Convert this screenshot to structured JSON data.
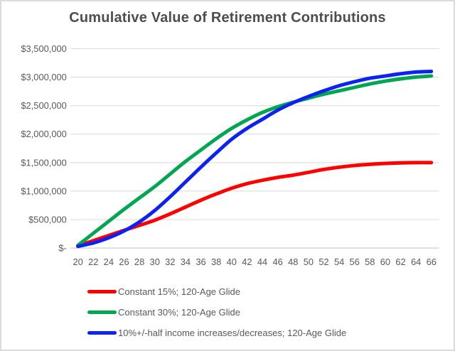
{
  "chart_data": {
    "type": "line",
    "title": "Cumulative Value of Retirement Contributions",
    "xlabel": "",
    "ylabel": "",
    "categories": [
      20,
      22,
      24,
      26,
      28,
      30,
      32,
      34,
      36,
      38,
      40,
      42,
      44,
      46,
      48,
      50,
      52,
      54,
      56,
      58,
      60,
      62,
      64,
      66
    ],
    "ylim": [
      0,
      3500000
    ],
    "y_tick_step": 500000,
    "y_tick_labels": [
      "$-",
      "$500,000",
      "$1,000,000",
      "$1,500,000",
      "$2,000,000",
      "$2,500,000",
      "$3,000,000",
      "$3,500,000"
    ],
    "grid": true,
    "legend_position": "bottom-left",
    "series": [
      {
        "id": "constant-15",
        "name": "Constant 15%; 120-Age Glide",
        "color": "#fe0000",
        "values": [
          40000,
          130000,
          220000,
          310000,
          400000,
          490000,
          600000,
          720000,
          840000,
          950000,
          1050000,
          1130000,
          1190000,
          1240000,
          1280000,
          1330000,
          1380000,
          1420000,
          1450000,
          1470000,
          1485000,
          1495000,
          1500000,
          1500000
        ]
      },
      {
        "id": "constant-30",
        "name": "Constant 30%; 120-Age Glide",
        "color": "#00a651",
        "values": [
          50000,
          260000,
          470000,
          680000,
          880000,
          1080000,
          1300000,
          1520000,
          1720000,
          1920000,
          2100000,
          2250000,
          2380000,
          2480000,
          2560000,
          2630000,
          2700000,
          2760000,
          2820000,
          2880000,
          2930000,
          2970000,
          3000000,
          3020000
        ]
      },
      {
        "id": "income-glide",
        "name": "10%+/-half income increases/decreases; 120-Age Glide",
        "color": "#0d22f2",
        "values": [
          30000,
          90000,
          180000,
          300000,
          460000,
          660000,
          900000,
          1160000,
          1420000,
          1670000,
          1910000,
          2100000,
          2260000,
          2420000,
          2550000,
          2660000,
          2760000,
          2850000,
          2920000,
          2980000,
          3020000,
          3060000,
          3090000,
          3100000
        ]
      }
    ]
  }
}
